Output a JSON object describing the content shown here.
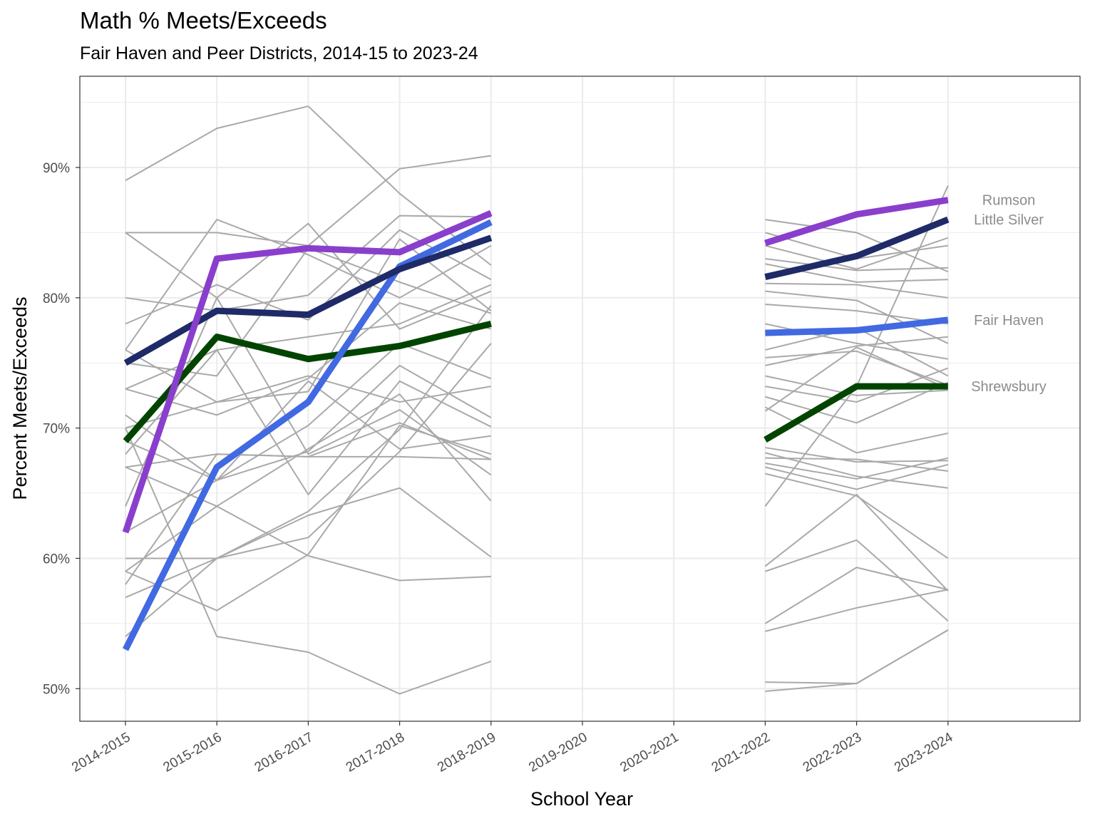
{
  "chart_data": {
    "type": "line",
    "title": "Math % Meets/Exceeds",
    "subtitle": "Fair Haven and Peer Districts, 2014-15 to 2023-24",
    "xlabel": "School Year",
    "ylabel": "Percent Meets/Exceeds",
    "categories": [
      "2014-2015",
      "2015-2016",
      "2016-2017",
      "2017-2018",
      "2018-2019",
      "2019-2020",
      "2020-2021",
      "2021-2022",
      "2022-2023",
      "2023-2024"
    ],
    "ylim": [
      47.5,
      97
    ],
    "yticks": [
      50,
      60,
      70,
      80,
      90
    ],
    "ytick_labels": [
      "50%",
      "60%",
      "70%",
      "80%",
      "90%"
    ],
    "grid": true,
    "gap_years": [
      "2019-2020",
      "2020-2021"
    ],
    "highlight_series": [
      {
        "name": "Rumson",
        "label": "Rumson",
        "color": "#8a3fcc",
        "values": [
          62,
          83,
          83.8,
          83.5,
          86.5,
          null,
          null,
          84.2,
          86.4,
          87.5
        ]
      },
      {
        "name": "Little Silver",
        "label": "Little Silver",
        "color": "#1f2a68",
        "values": [
          75,
          79,
          78.7,
          82.2,
          84.6,
          null,
          null,
          81.6,
          83.2,
          86
        ]
      },
      {
        "name": "Fair Haven",
        "label": "Fair Haven",
        "color": "#4169e1",
        "values": [
          53,
          67,
          72,
          82.4,
          85.8,
          null,
          null,
          77.3,
          77.5,
          78.3
        ]
      },
      {
        "name": "Shrewsbury",
        "label": "Shrewsbury",
        "color": "#004400",
        "values": [
          69,
          77,
          75.3,
          76.3,
          78,
          null,
          null,
          69.1,
          73.2,
          73.2
        ]
      }
    ],
    "peer_series": [
      {
        "values": [
          89,
          93,
          94.7,
          88,
          82.5,
          null,
          null,
          86,
          85,
          82
        ]
      },
      {
        "values": [
          85,
          85,
          84,
          89.9,
          90.9,
          null,
          null,
          85,
          83,
          84
        ]
      },
      {
        "values": [
          85,
          80,
          85.7,
          77.6,
          80.5,
          null,
          null,
          84,
          82.2,
          84.6
        ]
      },
      {
        "values": [
          80,
          79,
          80.2,
          86.3,
          86.2,
          null,
          null,
          83,
          82.1,
          82.3
        ]
      },
      {
        "values": [
          78,
          81,
          78.3,
          85.2,
          81.4,
          null,
          null,
          82.6,
          81.2,
          81.4
        ]
      },
      {
        "values": [
          76,
          86,
          83.3,
          80,
          84,
          null,
          null,
          81.1,
          81,
          80
        ]
      },
      {
        "values": [
          76,
          72,
          72.8,
          84.5,
          79,
          null,
          null,
          80.5,
          79.8,
          76.5
        ]
      },
      {
        "values": [
          75,
          74,
          83.8,
          81.2,
          78.8,
          null,
          null,
          79.5,
          79,
          78
        ]
      },
      {
        "values": [
          73,
          76,
          77,
          78,
          81,
          null,
          null,
          78,
          76.5,
          75.3
        ]
      },
      {
        "values": [
          73,
          71,
          73.8,
          79.6,
          77.6,
          null,
          null,
          76,
          77.7,
          74
        ]
      },
      {
        "values": [
          71,
          66,
          70.2,
          76.5,
          73.8,
          null,
          null,
          75.4,
          75.9,
          73.3
        ]
      },
      {
        "values": [
          70,
          72,
          74,
          72,
          73.2,
          null,
          null,
          74.8,
          76.3,
          77
        ]
      },
      {
        "values": [
          69,
          66,
          68.2,
          74.8,
          70.8,
          null,
          null,
          74,
          72.5,
          72.9
        ]
      },
      {
        "values": [
          68,
          76,
          64.9,
          73.6,
          70.1,
          null,
          null,
          73.2,
          72,
          74.6
        ]
      },
      {
        "values": [
          67,
          68,
          67.8,
          70.4,
          67.6,
          null,
          null,
          72.4,
          70.4,
          73.5
        ]
      },
      {
        "values": [
          64,
          80,
          68,
          71.4,
          66.4,
          null,
          null,
          71.6,
          68.1,
          69.6
        ]
      },
      {
        "values": [
          62,
          66,
          73.6,
          68.4,
          69.4,
          null,
          null,
          71.3,
          76.2,
          73
        ]
      },
      {
        "values": [
          60,
          60,
          63.6,
          69.9,
          79.4,
          null,
          null,
          68.5,
          67.4,
          67.5
        ]
      },
      {
        "values": [
          59,
          64,
          68.4,
          72.6,
          64.4,
          null,
          null,
          68.1,
          66.3,
          65.4
        ]
      },
      {
        "values": [
          59,
          56,
          60.3,
          70.2,
          68,
          null,
          null,
          67.7,
          67.6,
          66.7
        ]
      },
      {
        "values": [
          58,
          68,
          67.8,
          67.8,
          67.6,
          null,
          null,
          67.3,
          66.1,
          67.7
        ]
      },
      {
        "values": [
          57,
          60,
          61.6,
          68.2,
          76.5,
          null,
          null,
          67,
          65.3,
          67.2
        ]
      },
      {
        "values": [
          70,
          54,
          52.8,
          49.6,
          52.1,
          null,
          null,
          66.5,
          64.8,
          60
        ]
      },
      {
        "values": [
          67,
          64,
          60.2,
          58.3,
          58.6,
          null,
          null,
          64,
          73.2,
          88.6
        ]
      },
      {
        "values": [
          54,
          60,
          63.3,
          65.4,
          60.1,
          null,
          null,
          59.4,
          64.9,
          57.5
        ]
      },
      {
        "values": [
          null,
          null,
          null,
          null,
          null,
          null,
          null,
          59,
          61.4,
          55.2
        ]
      },
      {
        "values": [
          null,
          null,
          null,
          null,
          null,
          null,
          null,
          55,
          59.3,
          57.6
        ]
      },
      {
        "values": [
          null,
          null,
          null,
          null,
          null,
          null,
          null,
          54.4,
          56.2,
          57.6
        ]
      },
      {
        "values": [
          null,
          null,
          null,
          null,
          null,
          null,
          null,
          49.8,
          50.4,
          54.5
        ]
      },
      {
        "values": [
          null,
          null,
          null,
          null,
          null,
          null,
          null,
          50.5,
          50.4,
          54.5
        ]
      }
    ],
    "end_labels": [
      "Rumson",
      "Little Silver",
      "Fair Haven",
      "Shrewsbury"
    ],
    "colors": {
      "peer_line": "#a9a9a9",
      "grid": "#ebebeb",
      "panel_border": "#333333"
    }
  }
}
